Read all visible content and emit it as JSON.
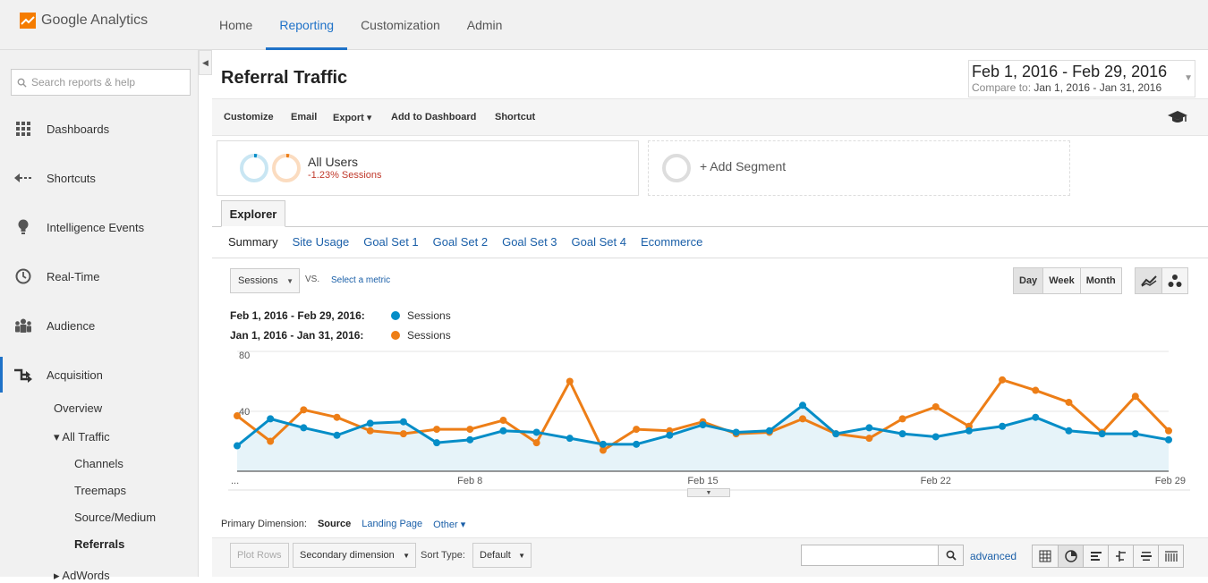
{
  "app": {
    "name": "Google Analytics"
  },
  "topnav": [
    "Home",
    "Reporting",
    "Customization",
    "Admin"
  ],
  "search": {
    "placeholder": "Search reports & help"
  },
  "sidebar": {
    "items": [
      {
        "label": "Dashboards",
        "icon": "grid-icon"
      },
      {
        "label": "Shortcuts",
        "icon": "shortcut-arrow-icon"
      },
      {
        "label": "Intelligence Events",
        "icon": "lightbulb-icon"
      },
      {
        "label": "Real-Time",
        "icon": "clock-icon"
      },
      {
        "label": "Audience",
        "icon": "people-icon"
      },
      {
        "label": "Acquisition",
        "icon": "acquisition-arrows-icon"
      }
    ],
    "sub": {
      "overview": "Overview",
      "all_traffic": "▾ All Traffic",
      "channels": "Channels",
      "treemaps": "Treemaps",
      "source_medium": "Source/Medium",
      "referrals": "Referrals",
      "adwords": "▸ AdWords"
    }
  },
  "page": {
    "title": "Referral Traffic"
  },
  "daterange": {
    "main": "Feb 1, 2016 - Feb 29, 2016",
    "compare_label": "Compare to:",
    "compare": "Jan 1, 2016 - Jan 31, 2016"
  },
  "toolbar": {
    "customize": "Customize",
    "email": "Email",
    "export": "Export ▾",
    "add_dashboard": "Add to Dashboard",
    "shortcut": "Shortcut"
  },
  "segments": {
    "name": "All Users",
    "sub": "-1.23% Sessions",
    "add": "+ Add Segment"
  },
  "explorer": {
    "tab": "Explorer",
    "subtabs": [
      "Summary",
      "Site Usage",
      "Goal Set 1",
      "Goal Set 2",
      "Goal Set 3",
      "Goal Set 4",
      "Ecommerce"
    ]
  },
  "metric": {
    "selected": "Sessions",
    "vs": "VS.",
    "select": "Select a metric"
  },
  "periods": [
    "Day",
    "Week",
    "Month"
  ],
  "legend": [
    {
      "date": "Feb 1, 2016 - Feb 29, 2016:",
      "series": "Sessions",
      "color": "#058dc7"
    },
    {
      "date": "Jan 1, 2016 - Jan 31, 2016:",
      "series": "Sessions",
      "color": "#ed7e17"
    }
  ],
  "chart_data": {
    "type": "line",
    "ylim": [
      0,
      80
    ],
    "y_ticks": [
      "80",
      "40"
    ],
    "x_tick_labels": [
      "...",
      "Feb 8",
      "Feb 15",
      "Feb 22",
      "Feb 29"
    ],
    "series": [
      {
        "name": "Sessions",
        "color": "#058dc7",
        "values": [
          17,
          35,
          29,
          24,
          32,
          33,
          19,
          21,
          27,
          26,
          22,
          18,
          18,
          24,
          31,
          26,
          27,
          44,
          25,
          29,
          25,
          23,
          27,
          30,
          36,
          27,
          25,
          25,
          21
        ]
      },
      {
        "name": "Sessions",
        "color": "#ed7e17",
        "values": [
          37,
          20,
          41,
          36,
          27,
          25,
          28,
          28,
          34,
          19,
          60,
          14,
          28,
          27,
          33,
          25,
          26,
          35,
          25,
          22,
          35,
          43,
          30,
          61,
          54,
          46,
          26,
          50,
          27
        ]
      }
    ]
  },
  "dimension": {
    "label": "Primary Dimension:",
    "current": "Source",
    "landing": "Landing Page",
    "other": "Other ▾"
  },
  "table_controls": {
    "plot_rows": "Plot Rows",
    "secondary": "Secondary dimension",
    "sort_label": "Sort Type:",
    "sort_value": "Default",
    "advanced": "advanced"
  }
}
